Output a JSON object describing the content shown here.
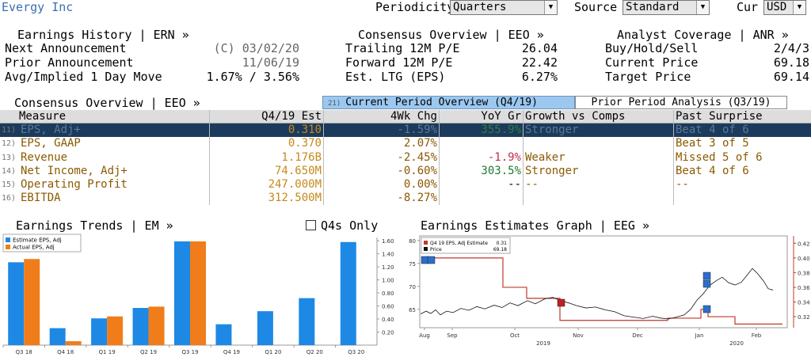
{
  "header": {
    "company": "Evergy Inc",
    "periodicity_label": "Periodicity",
    "periodicity_value": "Quarters",
    "source_label": "Source",
    "source_value": "Standard",
    "cur_label": "Cur",
    "cur_value": "USD"
  },
  "earnings_history": {
    "title": "Earnings History | ERN »",
    "rows": [
      {
        "label": "Next Announcement",
        "value": "(C) 03/02/20"
      },
      {
        "label": "Prior Announcement",
        "value": "11/06/19"
      },
      {
        "label": "Avg/Implied 1 Day Move",
        "value": "1.67% / 3.56%"
      }
    ]
  },
  "consensus_overview": {
    "title": "Consensus Overview | EEO »",
    "rows": [
      {
        "label": "Trailing 12M P/E",
        "value": "26.04"
      },
      {
        "label": "Forward 12M P/E",
        "value": "22.42"
      },
      {
        "label": "Est. LTG (EPS)",
        "value": "6.27%"
      }
    ]
  },
  "analyst_coverage": {
    "title": "Analyst Coverage | ANR »",
    "rows": [
      {
        "label": "Buy/Hold/Sell",
        "value": "2/4/3"
      },
      {
        "label": "Current Price",
        "value": "69.18"
      },
      {
        "label": "Target Price",
        "value": "69.14"
      }
    ]
  },
  "table": {
    "title": "Consensus Overview | EEO »",
    "tab_current_num": "21)",
    "tab_current": "Current Period Overview (Q4/19)",
    "tab_prior": "Prior Period Analysis (Q3/19)",
    "headers": [
      "Measure",
      "Q4/19 Est",
      "4Wk Chg",
      "YoY Gr",
      "Growth vs Comps",
      "Past Surprise"
    ],
    "rows": [
      {
        "num": "11)",
        "measure": "EPS, Adj+",
        "est": "0.310",
        "chg": "-1.59%",
        "yoy": "355.9%",
        "comps": "Stronger",
        "surprise": "Beat 4 of 6"
      },
      {
        "num": "12)",
        "measure": "EPS, GAAP",
        "est": "0.370",
        "chg": "2.07%",
        "yoy": "",
        "comps": "",
        "surprise": "Beat 3 of 5"
      },
      {
        "num": "13)",
        "measure": "Revenue",
        "est": "1.176B",
        "chg": "-2.45%",
        "yoy": "-1.9%",
        "comps": "Weaker",
        "surprise": "Missed 5 of 6"
      },
      {
        "num": "14)",
        "measure": "Net Income, Adj+",
        "est": "74.650M",
        "chg": "-0.60%",
        "yoy": "303.5%",
        "comps": "Stronger",
        "surprise": "Beat 4 of 6"
      },
      {
        "num": "15)",
        "measure": "Operating Profit",
        "est": "247.000M",
        "chg": "0.00%",
        "yoy": "--",
        "comps": "--",
        "surprise": "--"
      },
      {
        "num": "16)",
        "measure": "EBITDA",
        "est": "312.500M",
        "chg": "-8.27%",
        "yoy": "",
        "comps": "",
        "surprise": ""
      }
    ]
  },
  "trends": {
    "title": "Earnings Trends | EM »",
    "q4_only": "Q4s Only"
  },
  "graph": {
    "title": "Earnings Estimates Graph | EEG »"
  },
  "chart_data": [
    {
      "type": "bar",
      "title": "Earnings Trends",
      "categories": [
        "Q3 18",
        "Q4 18",
        "Q1 19",
        "Q2 19",
        "Q3 19",
        "Q4 19",
        "Q1 20",
        "Q2 20",
        "Q3 20"
      ],
      "series": [
        {
          "name": "Estimate EPS, Adj",
          "color": "#1e88e5",
          "values": [
            1.27,
            0.26,
            0.41,
            0.57,
            1.59,
            0.32,
            0.52,
            0.72,
            1.58
          ]
        },
        {
          "name": "Actual EPS, Adj",
          "color": "#f07d1a",
          "values": [
            1.32,
            0.06,
            0.44,
            0.59,
            1.59,
            null,
            null,
            null,
            null
          ]
        }
      ],
      "yticks": [
        "0.20",
        "0.40",
        "0.60",
        "0.80",
        "1.00",
        "1.20",
        "1.40",
        "1.60"
      ],
      "ylim": [
        0,
        1.65
      ],
      "legend": "top-left"
    },
    {
      "type": "line",
      "title": "Earnings Estimates Graph",
      "x_labels": [
        "Aug",
        "Sep",
        "Oct",
        "Nov",
        "Dec",
        "Jan",
        "Feb"
      ],
      "year_labels": [
        "2019",
        "2020"
      ],
      "left_ticks": [
        "65",
        "70",
        "75",
        "80"
      ],
      "right_ticks": [
        "0.32",
        "0.34",
        "0.36",
        "0.38",
        "0.40",
        "0.42"
      ],
      "series": [
        {
          "name": "Q4 19 EPS, Adj Estimate",
          "value": "0.31",
          "color": "#c0392b"
        },
        {
          "name": "Price",
          "value": "69.18",
          "color": "#111111"
        }
      ],
      "legend": "top-left"
    }
  ]
}
